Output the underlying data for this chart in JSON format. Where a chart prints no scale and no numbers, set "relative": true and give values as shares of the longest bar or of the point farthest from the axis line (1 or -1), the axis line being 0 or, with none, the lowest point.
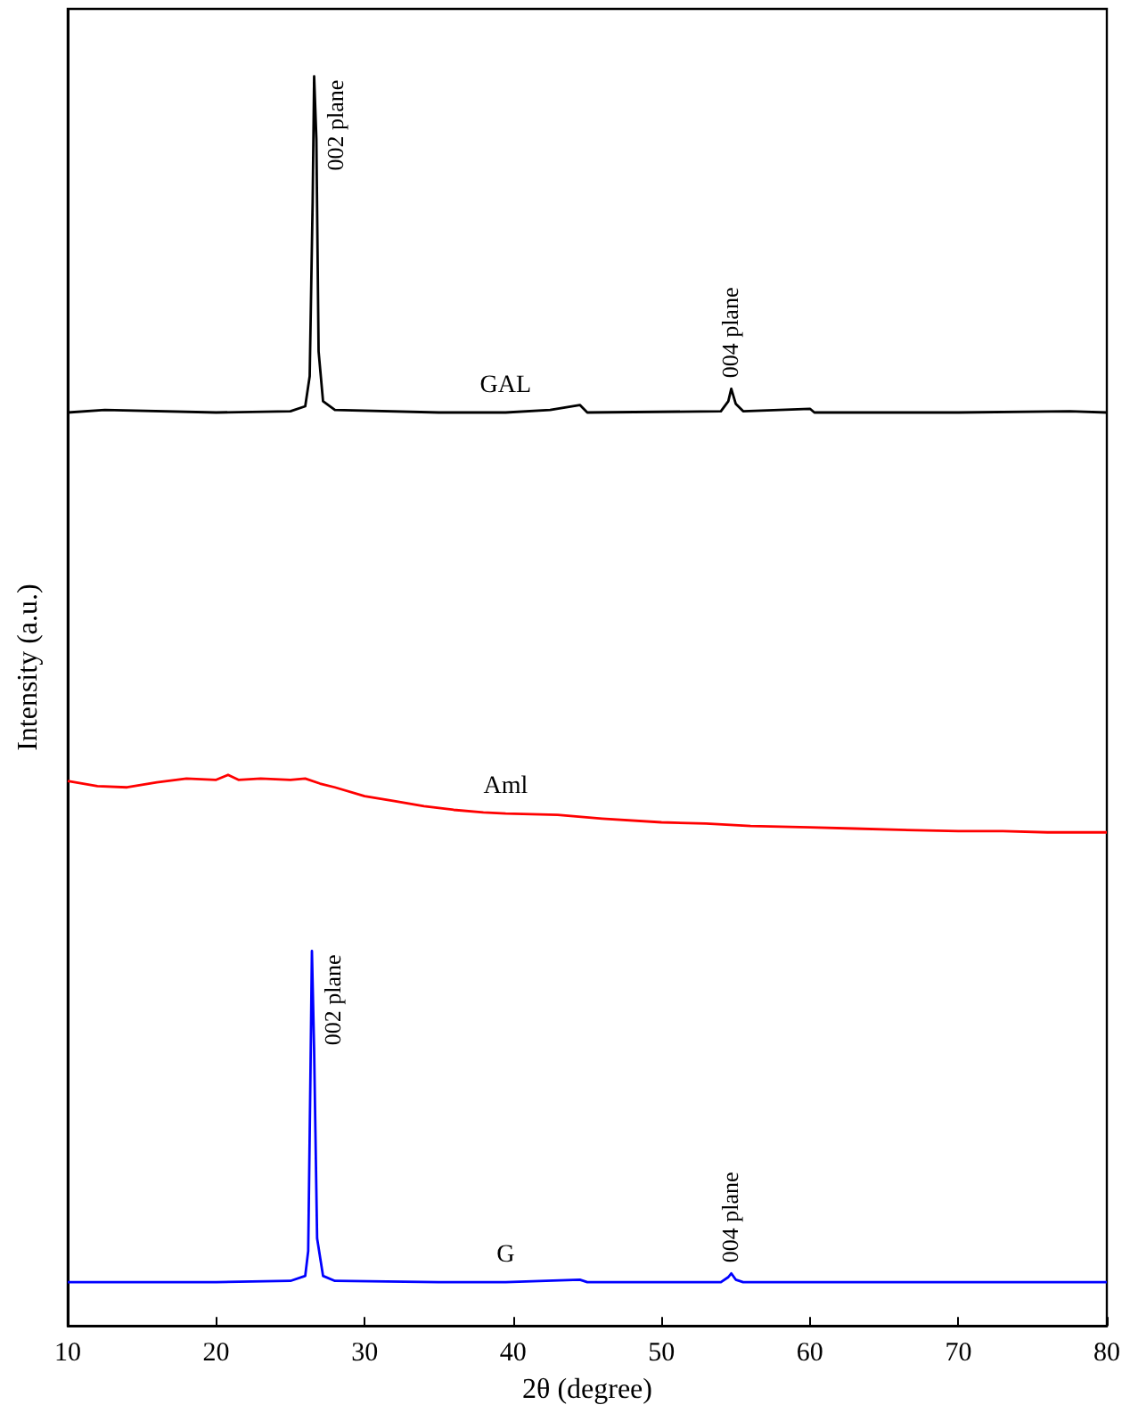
{
  "chart_data": {
    "type": "line",
    "relative": true,
    "xlabel": "2θ (degree)",
    "ylabel": "Intensity (a.u.)",
    "xlim": [
      10,
      80
    ],
    "xticks": [
      10,
      20,
      30,
      40,
      50,
      60,
      70,
      80
    ],
    "tick_labels": "x",
    "grid": false,
    "marker": "none",
    "line_style": "solid",
    "series": [
      {
        "name": "GAL",
        "color": "#000000",
        "x": [
          10,
          12.5,
          20,
          25,
          26,
          26.3,
          26.5,
          26.6,
          26.75,
          26.9,
          27.2,
          28,
          35,
          39.5,
          42.5,
          44.5,
          45,
          54,
          54.5,
          54.7,
          55,
          55.5,
          60,
          60.3,
          70,
          77.5,
          80
        ],
        "values": [
          0.731,
          0.733,
          0.731,
          0.732,
          0.736,
          0.76,
          0.9,
          1.0,
          0.95,
          0.78,
          0.74,
          0.733,
          0.731,
          0.731,
          0.733,
          0.737,
          0.731,
          0.732,
          0.74,
          0.75,
          0.738,
          0.732,
          0.734,
          0.731,
          0.731,
          0.732,
          0.731
        ]
      },
      {
        "name": "Aml",
        "color": "#ff0000",
        "x": [
          10,
          12,
          14,
          16,
          18,
          20,
          20.8,
          21.5,
          23,
          25,
          26,
          27,
          28,
          30,
          32,
          34,
          36,
          38,
          39.5,
          43,
          46,
          50,
          53,
          56,
          60,
          63,
          66,
          70,
          73,
          76,
          80
        ],
        "values": [
          0.436,
          0.432,
          0.431,
          0.435,
          0.438,
          0.437,
          0.441,
          0.437,
          0.438,
          0.437,
          0.438,
          0.434,
          0.431,
          0.424,
          0.42,
          0.416,
          0.413,
          0.411,
          0.41,
          0.409,
          0.406,
          0.403,
          0.402,
          0.4,
          0.399,
          0.398,
          0.397,
          0.396,
          0.396,
          0.395,
          0.395
        ]
      },
      {
        "name": "G",
        "color": "#0000ff",
        "x": [
          10,
          20,
          25,
          26,
          26.2,
          26.35,
          26.45,
          26.6,
          26.8,
          27.2,
          28,
          35,
          39.5,
          44.5,
          45,
          54,
          54.5,
          54.7,
          55,
          55.5,
          60,
          70,
          80
        ],
        "values": [
          0.035,
          0.035,
          0.036,
          0.04,
          0.06,
          0.2,
          0.3,
          0.22,
          0.07,
          0.04,
          0.036,
          0.035,
          0.035,
          0.037,
          0.035,
          0.035,
          0.039,
          0.042,
          0.037,
          0.035,
          0.035,
          0.035,
          0.035
        ]
      }
    ],
    "annotations": [
      {
        "text": "002 plane",
        "x": 26.6,
        "y": 1.0
      },
      {
        "text": "004 plane",
        "x": 54.7,
        "y": 0.75
      },
      {
        "text": "002 plane",
        "x": 26.45,
        "y": 0.3
      },
      {
        "text": "004 plane",
        "x": 54.7,
        "y": 0.042
      }
    ]
  }
}
